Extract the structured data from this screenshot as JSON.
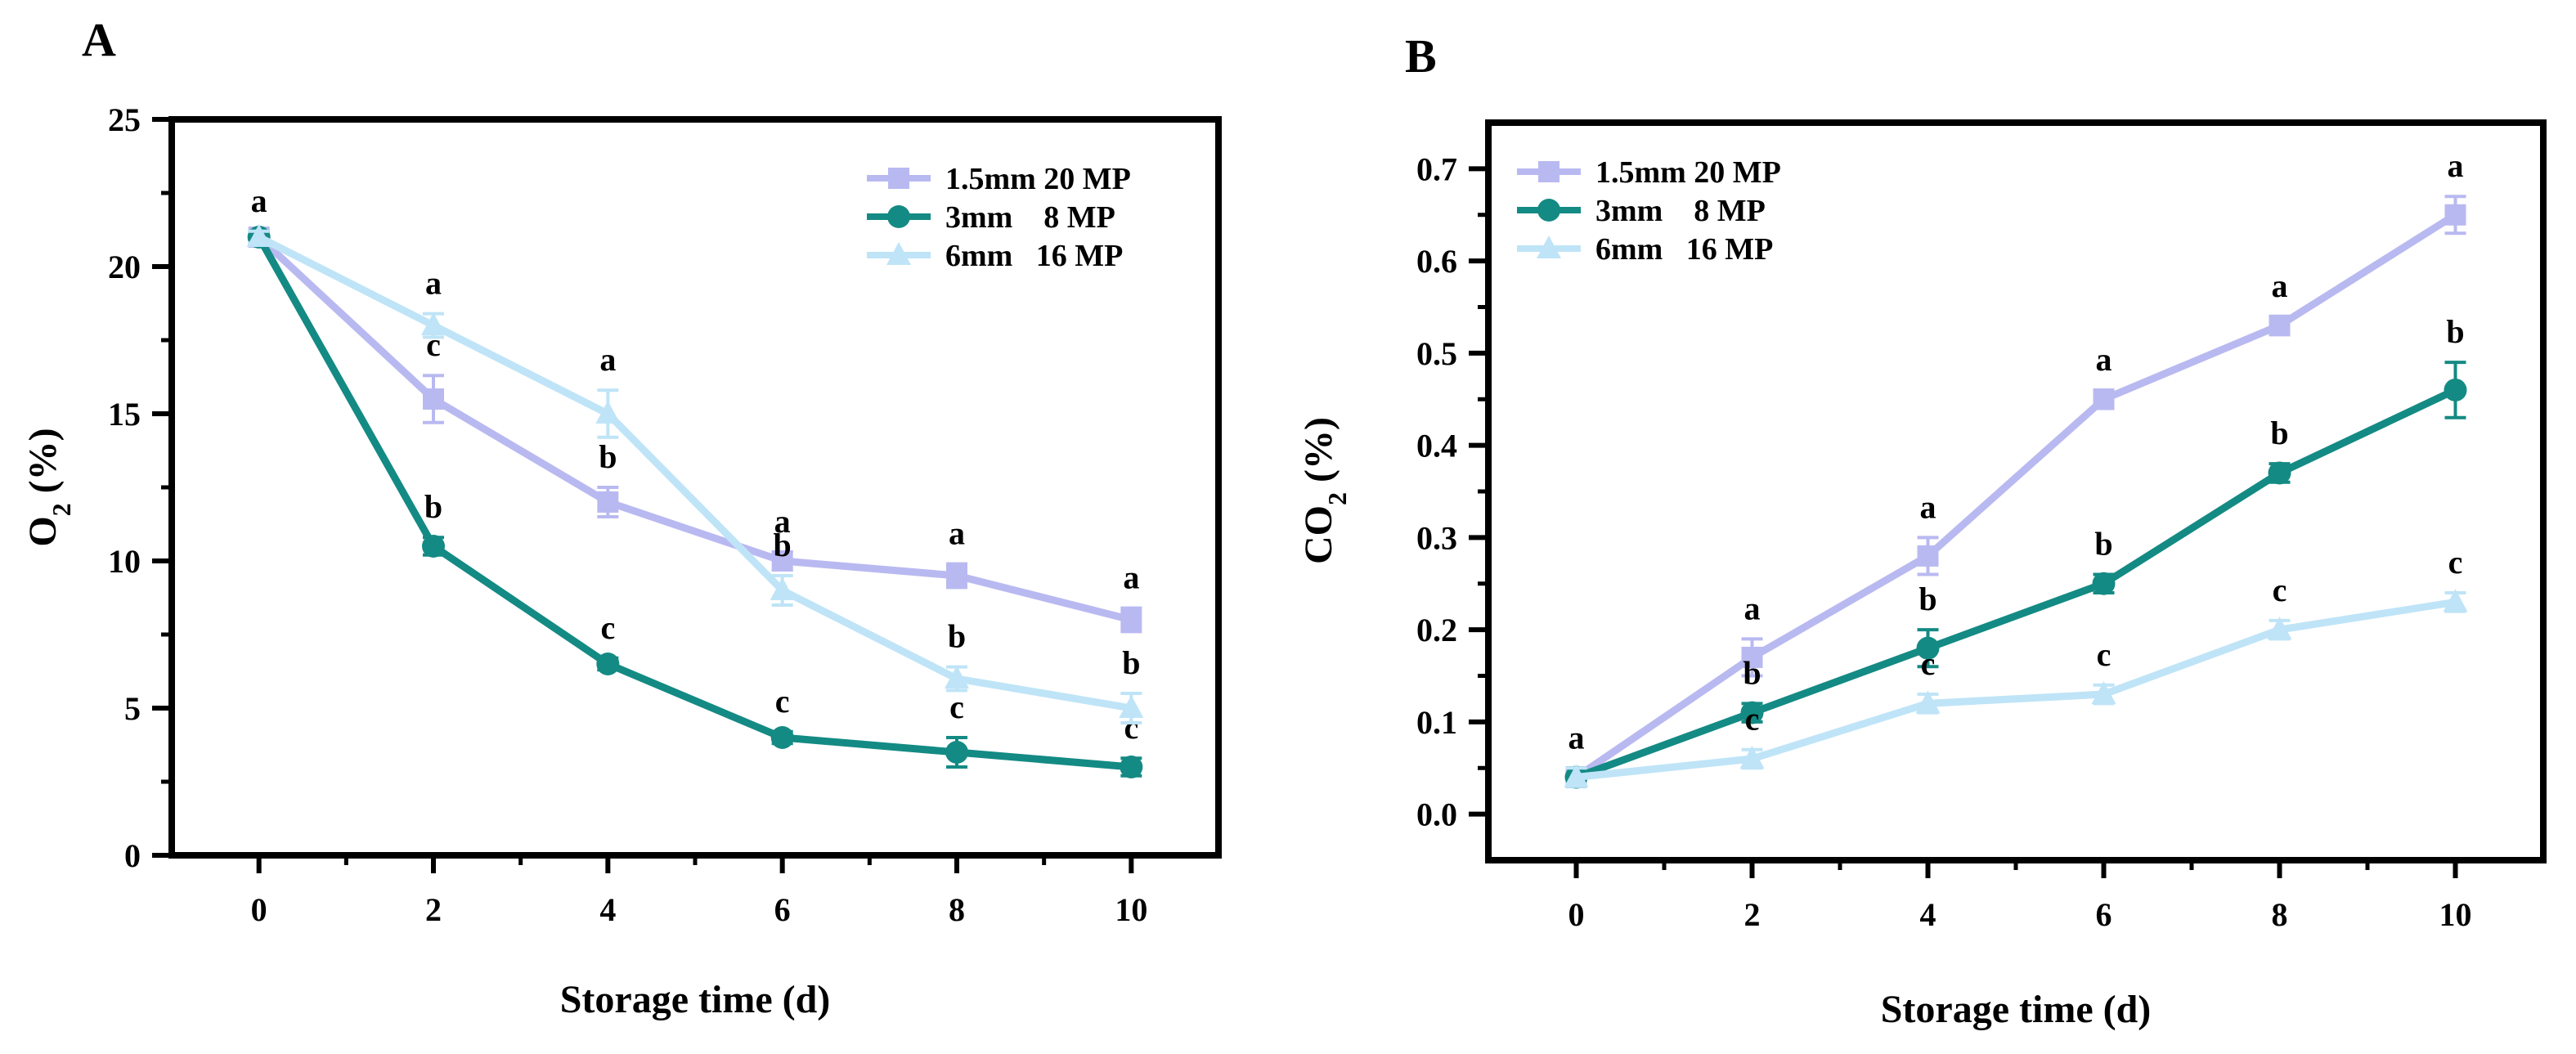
{
  "chart_data": [
    {
      "type": "line",
      "panel_label": "A",
      "title": "",
      "xlabel": "Storage time (d)",
      "ylabel_main": "O",
      "ylabel_sub": "2",
      "ylabel_tail": " (%)",
      "xlim": [
        -1,
        11
      ],
      "ylim": [
        0,
        25
      ],
      "x_ticks": [
        0,
        2,
        4,
        6,
        8,
        10
      ],
      "x_tick_labels": [
        "0",
        "2",
        "4",
        "6",
        "8",
        "10"
      ],
      "y_ticks": [
        0,
        5,
        10,
        15,
        20,
        25
      ],
      "y_tick_labels": [
        "0",
        "5",
        "10",
        "15",
        "20",
        "25"
      ],
      "grid": false,
      "legend_position": "top-right",
      "x": [
        0,
        2,
        4,
        6,
        8,
        10
      ],
      "series": [
        {
          "name": "1.5mm 20 MP",
          "legend_label": "1.5mm 20 MP",
          "color": "#b9b9f1",
          "marker": "square",
          "values": [
            21,
            15.5,
            12,
            10,
            9.5,
            8
          ],
          "errors": [
            0.2,
            0.8,
            0.5,
            0.3,
            0.4,
            0.4
          ],
          "letters": [
            "a",
            "c",
            "b",
            "a",
            "a",
            "a"
          ],
          "letter_offsets": [
            0,
            0,
            0,
            0,
            0,
            0
          ]
        },
        {
          "name": "3mm 8 MP",
          "legend_label": "3mm    8 MP",
          "color": "#148a84",
          "marker": "circle",
          "values": [
            21,
            10.5,
            6.5,
            4,
            3.5,
            3
          ],
          "errors": [
            0.2,
            0.3,
            0.2,
            0.2,
            0.5,
            0.3
          ],
          "letters": [
            "",
            "b",
            "c",
            "c",
            "c",
            "c"
          ],
          "letter_offsets": [
            0,
            0,
            0,
            0,
            0,
            0
          ]
        },
        {
          "name": "6mm 16 MP",
          "legend_label": "6mm   16 MP",
          "color": "#bfe4f7",
          "marker": "triangle",
          "values": [
            21,
            18,
            15,
            9,
            6,
            5
          ],
          "errors": [
            0.2,
            0.4,
            0.8,
            0.5,
            0.4,
            0.5
          ],
          "letters": [
            "",
            "a",
            "a",
            "b",
            "b",
            "b"
          ],
          "letter_offsets": [
            0,
            0,
            0,
            0,
            0,
            0
          ]
        }
      ]
    },
    {
      "type": "line",
      "panel_label": "B",
      "title": "",
      "xlabel": "Storage time (d)",
      "ylabel_main": "CO",
      "ylabel_sub": "2",
      "ylabel_tail": " (%)",
      "xlim": [
        -1,
        11
      ],
      "ylim": [
        -0.05,
        0.75
      ],
      "x_ticks": [
        0,
        2,
        4,
        6,
        8,
        10
      ],
      "x_tick_labels": [
        "0",
        "2",
        "4",
        "6",
        "8",
        "10"
      ],
      "y_ticks": [
        0.0,
        0.1,
        0.2,
        0.3,
        0.4,
        0.5,
        0.6,
        0.7
      ],
      "y_tick_labels": [
        "0.0",
        "0.1",
        "0.2",
        "0.3",
        "0.4",
        "0.5",
        "0.6",
        "0.7"
      ],
      "grid": false,
      "legend_position": "top-left",
      "x": [
        0,
        2,
        4,
        6,
        8,
        10
      ],
      "series": [
        {
          "name": "1.5mm 20 MP",
          "legend_label": "1.5mm 20 MP",
          "color": "#b9b9f1",
          "marker": "square",
          "values": [
            0.04,
            0.17,
            0.28,
            0.45,
            0.53,
            0.65
          ],
          "errors": [
            0.01,
            0.02,
            0.02,
            0.01,
            0.01,
            0.02
          ],
          "letters": [
            "a",
            "a",
            "a",
            "a",
            "a",
            "a"
          ],
          "letter_offsets": [
            0,
            0,
            0,
            0,
            0,
            0
          ]
        },
        {
          "name": "3mm 8 MP",
          "legend_label": "3mm    8 MP",
          "color": "#148a84",
          "marker": "circle",
          "values": [
            0.04,
            0.11,
            0.18,
            0.25,
            0.37,
            0.46
          ],
          "errors": [
            0.01,
            0.01,
            0.02,
            0.01,
            0.01,
            0.03
          ],
          "letters": [
            "",
            "b",
            "b",
            "b",
            "b",
            "b"
          ],
          "letter_offsets": [
            0,
            0,
            0,
            0,
            0,
            0
          ]
        },
        {
          "name": "6mm 16 MP",
          "legend_label": "6mm   16 MP",
          "color": "#bfe4f7",
          "marker": "triangle",
          "values": [
            0.04,
            0.06,
            0.12,
            0.13,
            0.2,
            0.23
          ],
          "errors": [
            0.01,
            0.01,
            0.01,
            0.01,
            0.01,
            0.01
          ],
          "letters": [
            "",
            "c",
            "c",
            "c",
            "c",
            "c"
          ],
          "letter_offsets": [
            0,
            0,
            0,
            0,
            0,
            0
          ]
        }
      ]
    }
  ]
}
